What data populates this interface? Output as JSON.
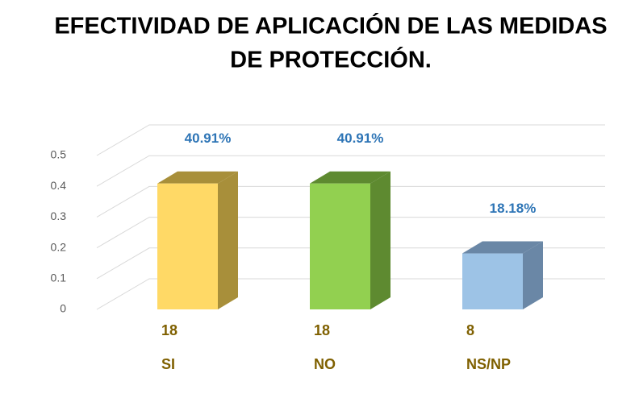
{
  "chart_data": {
    "type": "bar3d",
    "title": "EFECTIVIDAD DE APLICACIÓN DE LAS MEDIDAS",
    "subtitle": "DE PROTECCIÓN.",
    "categories": [
      "SI",
      "NO",
      "NS/NP"
    ],
    "values": [
      0.4091,
      0.4091,
      0.1818
    ],
    "value_labels": [
      "40.91%",
      "40.91%",
      "18.18%"
    ],
    "counts": [
      18,
      18,
      8
    ],
    "colors": [
      "#FFD966",
      "#92D050",
      "#9DC3E6"
    ],
    "side_colors": [
      "#A88F3A",
      "#5E8A30",
      "#6A87A6"
    ],
    "ylim": [
      0,
      0.5
    ],
    "yticks": [
      0,
      0.1,
      0.2,
      0.3,
      0.4,
      0.5
    ],
    "grid": true
  }
}
